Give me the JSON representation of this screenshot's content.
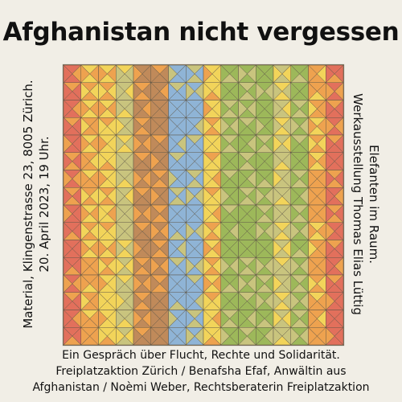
{
  "title": "Afghanistan nicht vergessen",
  "left_text": [
    "Material, Klingenstrasse 23, 8005 Zürich.",
    "20. April 2023, 19 Uhr."
  ],
  "right_text": [
    "Elefanten im Raum.",
    "Werkausstellung Thomas Elias Lüttig"
  ],
  "footer": [
    "Ein Gespräch über Flucht, Rechte und Solidarität.",
    "Freiplatzaktion Zürich / Benafsha Efaf, Anwältin aus",
    "Afghanistan / Noèmi Weber, Rechtsberaterin Freiplatzaktion"
  ],
  "artwork": {
    "grid": 16,
    "colors": {
      "red": "#e2705c",
      "orange": "#eea24f",
      "yellow": "#f2d45a",
      "olive": "#c9c47e",
      "brown": "#c08a5a",
      "blue": "#8fb4d6",
      "green": "#9db85a",
      "line": "#5e5546"
    }
  }
}
